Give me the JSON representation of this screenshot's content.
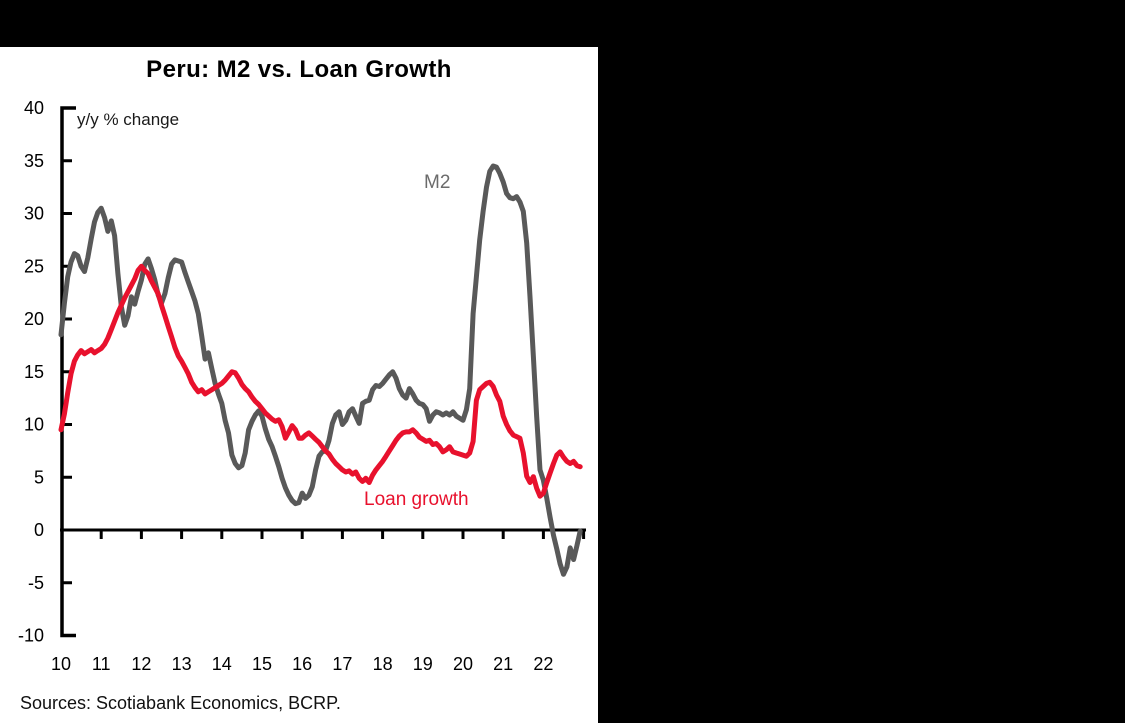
{
  "window": {
    "background_color": "#000000",
    "panel_color": "#ffffff"
  },
  "chart_data": {
    "type": "line",
    "title": "Peru: M2 vs. Loan Growth",
    "unit_label": "y/y % change",
    "source_note": "Sources: Scotiabank Economics, BCRP.",
    "x_tick_labels": [
      "10",
      "11",
      "12",
      "13",
      "14",
      "15",
      "16",
      "17",
      "18",
      "19",
      "20",
      "21",
      "22"
    ],
    "x_start_year": 2010,
    "x_end_year": 2022,
    "frequency": "monthly",
    "ylim": [
      -10,
      40
    ],
    "y_tick_step": 5,
    "grid": false,
    "legend_position": "inline-annotations",
    "axis_color": "#000000",
    "series": [
      {
        "name": "M2",
        "annotation": "M2",
        "color": "#595959",
        "values": [
          18.5,
          21.5,
          24.0,
          25.4,
          26.2,
          26.0,
          25.0,
          24.5,
          25.8,
          27.6,
          29.2,
          30.1,
          30.5,
          29.6,
          28.3,
          29.3,
          27.9,
          24.3,
          21.2,
          19.4,
          20.3,
          22.1,
          21.4,
          22.6,
          23.7,
          25.2,
          25.7,
          24.8,
          23.7,
          22.3,
          21.5,
          22.4,
          23.9,
          25.2,
          25.6,
          25.5,
          25.4,
          24.4,
          23.5,
          22.6,
          21.7,
          20.5,
          18.4,
          16.2,
          16.8,
          15.3,
          13.9,
          12.9,
          12.0,
          10.4,
          9.2,
          7.1,
          6.3,
          5.9,
          6.1,
          7.3,
          9.5,
          10.3,
          10.9,
          11.3,
          10.8,
          9.6,
          8.6,
          7.9,
          7.0,
          6.0,
          4.9,
          4.0,
          3.3,
          2.8,
          2.5,
          2.6,
          3.5,
          3.0,
          3.3,
          4.1,
          5.7,
          7.0,
          7.4,
          7.5,
          8.5,
          10.1,
          10.9,
          11.2,
          10.0,
          10.4,
          11.2,
          11.5,
          10.8,
          10.1,
          12.0,
          12.2,
          12.3,
          13.3,
          13.7,
          13.6,
          13.9,
          14.3,
          14.7,
          15.0,
          14.4,
          13.4,
          12.8,
          12.5,
          13.4,
          12.9,
          12.3,
          12.0,
          11.9,
          11.5,
          10.3,
          10.9,
          11.2,
          11.1,
          10.9,
          11.1,
          10.9,
          11.2,
          10.8,
          10.6,
          10.4,
          11.4,
          13.4,
          20.5,
          24.0,
          27.5,
          30.2,
          32.5,
          34.0,
          34.5,
          34.4,
          33.8,
          33.0,
          31.9,
          31.5,
          31.4,
          31.6,
          31.1,
          30.2,
          27.2,
          22.1,
          16.4,
          10.7,
          5.7,
          4.7,
          3.0,
          1.2,
          -0.5,
          -1.8,
          -3.2,
          -4.2,
          -3.5,
          -1.7,
          -2.8,
          -1.5,
          -0.1
        ]
      },
      {
        "name": "Loan growth",
        "annotation": "Loan growth",
        "color": "#e8112d",
        "values": [
          9.5,
          11.0,
          13.0,
          14.8,
          16.0,
          16.6,
          17.0,
          16.7,
          16.9,
          17.1,
          16.8,
          17.0,
          17.2,
          17.6,
          18.2,
          19.0,
          19.8,
          20.6,
          21.3,
          22.0,
          22.6,
          23.2,
          23.8,
          24.6,
          25.0,
          24.6,
          24.3,
          23.6,
          23.0,
          22.4,
          21.3,
          20.3,
          19.3,
          18.3,
          17.3,
          16.5,
          16.0,
          15.4,
          14.8,
          14.0,
          13.5,
          13.1,
          13.3,
          12.9,
          13.1,
          13.3,
          13.5,
          13.7,
          13.9,
          14.2,
          14.6,
          15.0,
          14.9,
          14.4,
          13.8,
          13.4,
          13.1,
          12.6,
          12.2,
          11.9,
          11.5,
          11.1,
          10.8,
          10.5,
          10.3,
          10.45,
          9.8,
          8.7,
          9.3,
          9.9,
          9.5,
          8.7,
          8.7,
          9.0,
          9.2,
          8.9,
          8.6,
          8.3,
          7.9,
          7.5,
          7.2,
          6.7,
          6.3,
          6.0,
          5.7,
          5.5,
          5.6,
          5.3,
          5.5,
          4.9,
          4.6,
          4.9,
          4.5,
          5.2,
          5.7,
          6.1,
          6.5,
          7.0,
          7.5,
          8.0,
          8.5,
          8.9,
          9.2,
          9.3,
          9.3,
          9.5,
          9.2,
          8.8,
          8.6,
          8.4,
          8.5,
          8.1,
          8.2,
          7.9,
          7.4,
          7.6,
          7.9,
          7.4,
          7.3,
          7.2,
          7.1,
          7.0,
          7.3,
          8.4,
          12.3,
          13.3,
          13.6,
          13.9,
          14.0,
          13.6,
          12.8,
          12.2,
          10.8,
          10.0,
          9.4,
          9.0,
          8.85,
          8.7,
          7.3,
          5.1,
          4.5,
          5.05,
          3.95,
          3.2,
          3.5,
          4.5,
          5.4,
          6.3,
          7.1,
          7.4,
          6.9,
          6.5,
          6.3,
          6.5,
          6.1,
          6.0
        ]
      }
    ]
  }
}
